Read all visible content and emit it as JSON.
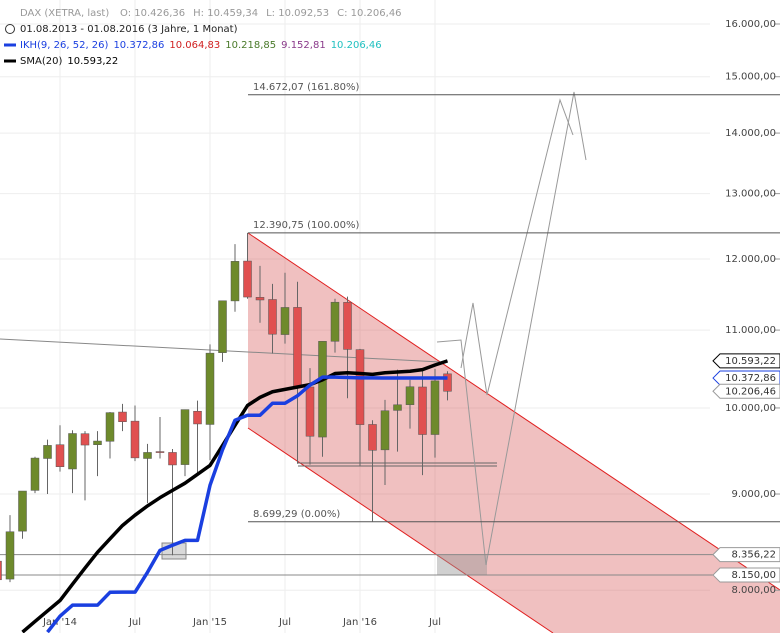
{
  "chart_data": {
    "type": "candlestick",
    "header": {
      "title": "DAX (XETRA, last)",
      "ohlc": [
        "O: 10.426,36",
        "H: 10.459,34",
        "L: 10.092,53",
        "C: 10.206,46"
      ],
      "range": "01.08.2013 - 01.08.2016 (3 Jahre, 1 Monat)",
      "indicators": [
        {
          "name": "IKH(9, 26, 52, 26)",
          "color": "#1a3fe0",
          "values": [
            {
              "label": "10.372,86",
              "color": "#1a3fe0"
            },
            {
              "label": "10.064,83",
              "color": "#d02020"
            },
            {
              "label": "10.218,85",
              "color": "#4a7a2a"
            },
            {
              "label": "9.152,81",
              "color": "#8a3a8a"
            },
            {
              "label": "10.206,46",
              "color": "#20c0c0"
            }
          ]
        },
        {
          "name": "SMA(20)",
          "color": "#000000",
          "values": [
            {
              "label": "10.593,22",
              "color": "#000000"
            }
          ]
        }
      ]
    },
    "categories": [
      null,
      null,
      null,
      null,
      null,
      "Jan '14",
      null,
      null,
      null,
      null,
      null,
      "Jul",
      null,
      null,
      null,
      null,
      null,
      "Jan '15",
      null,
      null,
      null,
      null,
      null,
      "Jul",
      null,
      null,
      null,
      null,
      null,
      "Jan '16",
      null,
      null,
      null,
      null,
      null,
      "Jul",
      null
    ],
    "open": [
      8290,
      8110,
      8600,
      9040,
      9400,
      9560,
      9280,
      9690,
      9560,
      9600,
      9950,
      9840,
      9400,
      9480,
      9470,
      9330,
      9960,
      9800,
      10700,
      11400,
      11970,
      11450,
      11420,
      10940,
      11310,
      10260,
      9650,
      10850,
      11380,
      10740,
      9800,
      9500,
      9970,
      10040,
      10260,
      9680,
      10426.36
    ],
    "high": [
      8470,
      8770,
      9010,
      9420,
      9620,
      9790,
      9730,
      9720,
      9720,
      9950,
      10050,
      10030,
      9570,
      9890,
      9510,
      9980,
      10090,
      10810,
      11400,
      12220,
      12390,
      11900,
      11640,
      11800,
      11670,
      10500,
      10850,
      11430,
      11460,
      10750,
      9850,
      10100,
      10480,
      10350,
      10480,
      10490,
      10459.34
    ],
    "low": [
      8100,
      8080,
      8520,
      9010,
      9000,
      9250,
      9010,
      8930,
      9200,
      9400,
      9720,
      9370,
      8900,
      9400,
      8350,
      9200,
      9220,
      9380,
      10580,
      11250,
      11430,
      11100,
      10690,
      10820,
      9340,
      9330,
      9420,
      10700,
      10120,
      9310,
      8700,
      9100,
      9480,
      9750,
      9210,
      9410,
      10092.53
    ],
    "close": [
      8103,
      8594,
      9033,
      9405,
      9552,
      9306,
      9692,
      9556,
      9603,
      9943,
      9833,
      9407,
      9470,
      9474,
      9326,
      9980,
      9806,
      10694,
      11402,
      11966,
      11454,
      11413,
      10945,
      11309,
      10259,
      9660,
      10850,
      11382,
      10743,
      9798,
      9495,
      9966,
      10039,
      10263,
      9680,
      10337,
      10206.46
    ],
    "up_color": "#6e8a2c",
    "down_color": "#e05050",
    "series": [
      {
        "name": "SMA(20)",
        "color": "#000000",
        "values": [
          null,
          null,
          7600,
          7700,
          7800,
          7900,
          8060,
          8220,
          8380,
          8520,
          8660,
          8770,
          8870,
          8960,
          9040,
          9120,
          9220,
          9320,
          9550,
          9790,
          10030,
          10130,
          10200,
          10230,
          10260,
          10290,
          10350,
          10430,
          10440,
          10430,
          10420,
          10440,
          10450,
          10460,
          10480,
          10540,
          10593.22
        ]
      },
      {
        "name": "IKH(9, 26, 52, 26)",
        "color": "#1a3fe0",
        "values": [
          null,
          null,
          null,
          null,
          7600,
          7750,
          7855,
          7855,
          7855,
          7980,
          7981,
          7981,
          8178,
          8400,
          8453,
          8504,
          8504,
          9096,
          9500,
          9851,
          9911,
          9911,
          10058,
          10058,
          10150,
          10284,
          10384,
          10384,
          10380,
          10375,
          10375,
          10373,
          10373,
          10373,
          10373,
          10373,
          10372.86
        ]
      }
    ],
    "log_scale": true,
    "grid": true,
    "ylim": [
      7592,
      16477
    ],
    "yticks": [
      {
        "value": 16000,
        "label": "16.000,00"
      },
      {
        "value": 15000,
        "label": "15.000,00"
      },
      {
        "value": 14000,
        "label": "14.000,00"
      },
      {
        "value": 13000,
        "label": "13.000,00"
      },
      {
        "value": 12000,
        "label": "12.000,00"
      },
      {
        "value": 11000,
        "label": "11.000,00"
      },
      {
        "value": 10000,
        "label": "10.000,00"
      },
      {
        "value": 9000,
        "label": "9.000,00"
      },
      {
        "value": 8000,
        "label": "8.000,00"
      }
    ],
    "fib_levels": [
      {
        "value": 14672.07,
        "label": "14.672,07 (161.80%)"
      },
      {
        "value": 12390.75,
        "label": "12.390,75 (100.00%)"
      },
      {
        "value": 8699.29,
        "label": "8.699,29 (0.00%)"
      }
    ],
    "levels": [
      {
        "value": 8356.22,
        "label": "8.356,22"
      },
      {
        "value": 8150,
        "label": "8.150,00"
      }
    ],
    "price_tags": [
      {
        "value": 10593.22,
        "label": "10.593,22",
        "color": "#000000"
      },
      {
        "value": 10372.86,
        "label": "10.372,86",
        "color": "#1a3fe0"
      },
      {
        "value": 10206.46,
        "label": "10.206,46",
        "color": "#999999"
      }
    ]
  }
}
